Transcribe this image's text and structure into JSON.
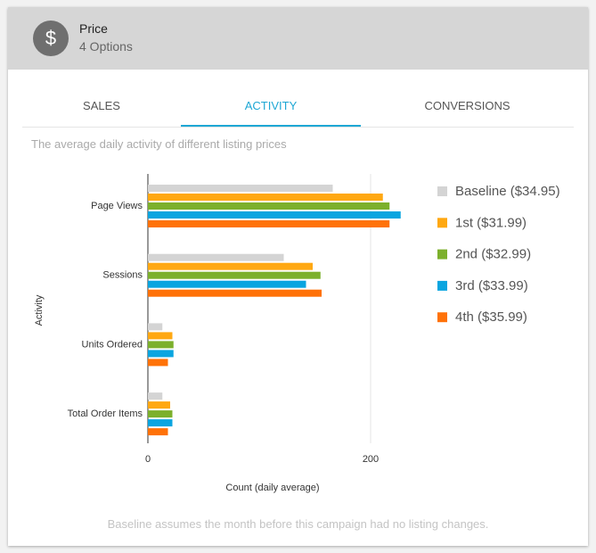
{
  "header": {
    "icon": "$",
    "title": "Price",
    "subtitle": "4 Options"
  },
  "tabs": [
    "SALES",
    "ACTIVITY",
    "CONVERSIONS"
  ],
  "description": "The average daily activity of different listing prices",
  "footer": "Baseline assumes the month before this campaign had no listing changes.",
  "chart_data": {
    "type": "bar",
    "orientation": "horizontal",
    "xlabel": "Count (daily average)",
    "ylabel": "Activity",
    "categories": [
      "Page Views",
      "Sessions",
      "Units Ordered",
      "Total Order Items"
    ],
    "series": [
      {
        "name": "Baseline ($34.95)",
        "color": "#d4d4d4",
        "values": [
          166,
          122,
          13,
          13
        ]
      },
      {
        "name": "1st ($31.99)",
        "color": "#ffa812",
        "values": [
          211,
          148,
          22,
          20
        ]
      },
      {
        "name": "2nd ($32.99)",
        "color": "#7cb02c",
        "values": [
          217,
          155,
          23,
          22
        ]
      },
      {
        "name": "3rd ($33.99)",
        "color": "#0aa5e0",
        "values": [
          227,
          142,
          23,
          22
        ]
      },
      {
        "name": "4th ($35.99)",
        "color": "#ff7208",
        "values": [
          217,
          156,
          18,
          18
        ]
      }
    ],
    "xlim": [
      0,
      240
    ],
    "xticks": [
      0,
      200
    ],
    "grid": true,
    "legend": "right"
  }
}
